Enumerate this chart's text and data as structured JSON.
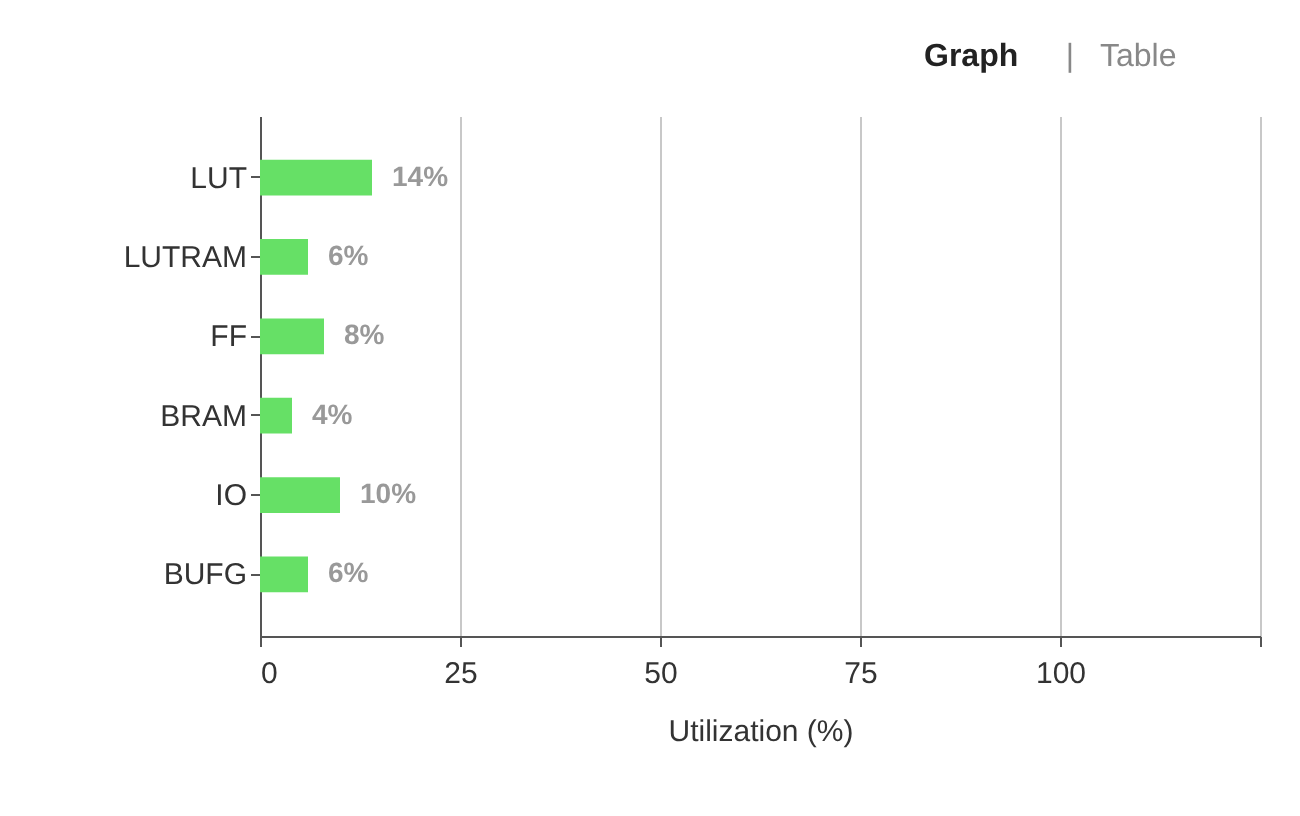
{
  "chart_data": {
    "type": "bar",
    "orientation": "horizontal",
    "xlabel": "Utilization (%)",
    "categories": [
      "LUT",
      "LUTRAM",
      "FF",
      "BRAM",
      "IO",
      "BUFG"
    ],
    "values": [
      14,
      6,
      8,
      4,
      10,
      6
    ],
    "color": "#66e066",
    "value_labels": [
      "14%",
      "6%",
      "8%",
      "4%",
      "10%",
      "6%"
    ],
    "xlim": [
      0,
      125
    ],
    "xticks": [
      0,
      25,
      50,
      75,
      100,
      {
        "value": 125,
        "label": null
      }
    ],
    "grid": "x",
    "annotations": [
      "Graph",
      "|",
      "Table"
    ]
  }
}
